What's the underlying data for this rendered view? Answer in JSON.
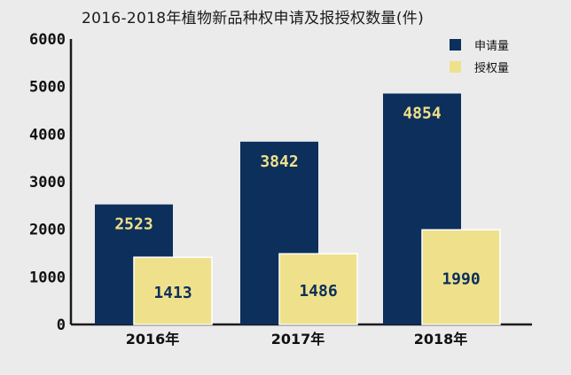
{
  "chart_data": {
    "type": "bar",
    "title": "2016-2018年植物新品种权申请及报授权数量(件)",
    "categories": [
      "2016年",
      "2017年",
      "2018年"
    ],
    "series": [
      {
        "name": "申请量",
        "values": [
          2523,
          3842,
          4854
        ],
        "color": "#0d2f5b"
      },
      {
        "name": "授权量",
        "values": [
          1413,
          1486,
          1990
        ],
        "color": "#efe18c"
      }
    ],
    "ylim": [
      0,
      6000
    ],
    "yticks": [
      "0",
      "1000",
      "2000",
      "3000",
      "4000",
      "5000",
      "6000"
    ],
    "ytick_values": [
      0,
      1000,
      2000,
      3000,
      4000,
      5000,
      6000
    ],
    "grid": false,
    "legend_position": "top-right",
    "data_labels": true
  }
}
